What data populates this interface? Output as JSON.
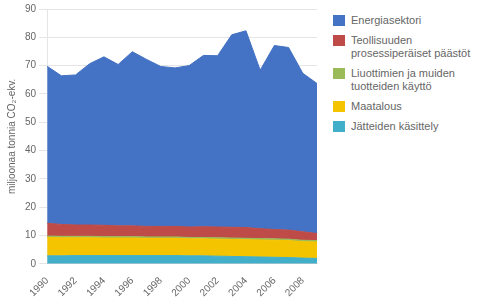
{
  "chart_data": {
    "type": "area",
    "stacked": true,
    "ylabel": "miljoonaa tonnia CO₂-ekv.",
    "x": [
      1990,
      1991,
      1992,
      1993,
      1994,
      1995,
      1996,
      1997,
      1998,
      1999,
      2000,
      2001,
      2002,
      2003,
      2004,
      2005,
      2006,
      2007,
      2008,
      2009
    ],
    "series": [
      {
        "name": "Jätteiden käsittely",
        "color": "#41AFCA",
        "values": [
          2.8,
          2.8,
          2.9,
          2.9,
          2.9,
          2.9,
          2.9,
          2.9,
          2.9,
          2.9,
          2.8,
          2.8,
          2.7,
          2.6,
          2.5,
          2.4,
          2.3,
          2.2,
          2.0,
          1.9
        ]
      },
      {
        "name": "Maatalous",
        "color": "#F5C400",
        "values": [
          6.5,
          6.4,
          6.3,
          6.3,
          6.2,
          6.2,
          6.2,
          6.1,
          6.1,
          6.1,
          6.0,
          6.0,
          6.0,
          6.0,
          6.0,
          6.0,
          6.0,
          6.0,
          5.8,
          5.8
        ]
      },
      {
        "name": "Liuottimien ja muiden\ntuotteiden käyttö",
        "color": "#9BBB59",
        "values": [
          0.5,
          0.5,
          0.5,
          0.5,
          0.5,
          0.5,
          0.5,
          0.5,
          0.5,
          0.5,
          0.5,
          0.5,
          0.5,
          0.5,
          0.5,
          0.5,
          0.5,
          0.5,
          0.5,
          0.5
        ]
      },
      {
        "name": "Teollisuuden\nprosessiperäiset päästöt",
        "color": "#BE4B48",
        "values": [
          4.5,
          4.2,
          4.0,
          4.0,
          4.0,
          3.8,
          3.8,
          3.7,
          3.7,
          3.7,
          3.7,
          3.8,
          3.8,
          3.8,
          3.8,
          3.5,
          3.3,
          3.2,
          3.0,
          2.5
        ]
      },
      {
        "name": "Energiasektori",
        "color": "#4472C4",
        "values": [
          55.5,
          52.5,
          53.0,
          57.0,
          59.5,
          57.0,
          61.5,
          59.0,
          56.5,
          56.0,
          57.0,
          60.5,
          60.5,
          68.0,
          69.5,
          56.0,
          65.0,
          64.5,
          56.0,
          53.0
        ]
      }
    ],
    "xlim": [
      1990,
      2009
    ],
    "xticks": [
      1990,
      1992,
      1994,
      1996,
      1998,
      2000,
      2002,
      2004,
      2006,
      2008
    ],
    "ylim": [
      0,
      90
    ],
    "yticks": [
      0,
      10,
      20,
      30,
      40,
      50,
      60,
      70,
      80,
      90
    ],
    "grid": true,
    "legend": "right"
  }
}
